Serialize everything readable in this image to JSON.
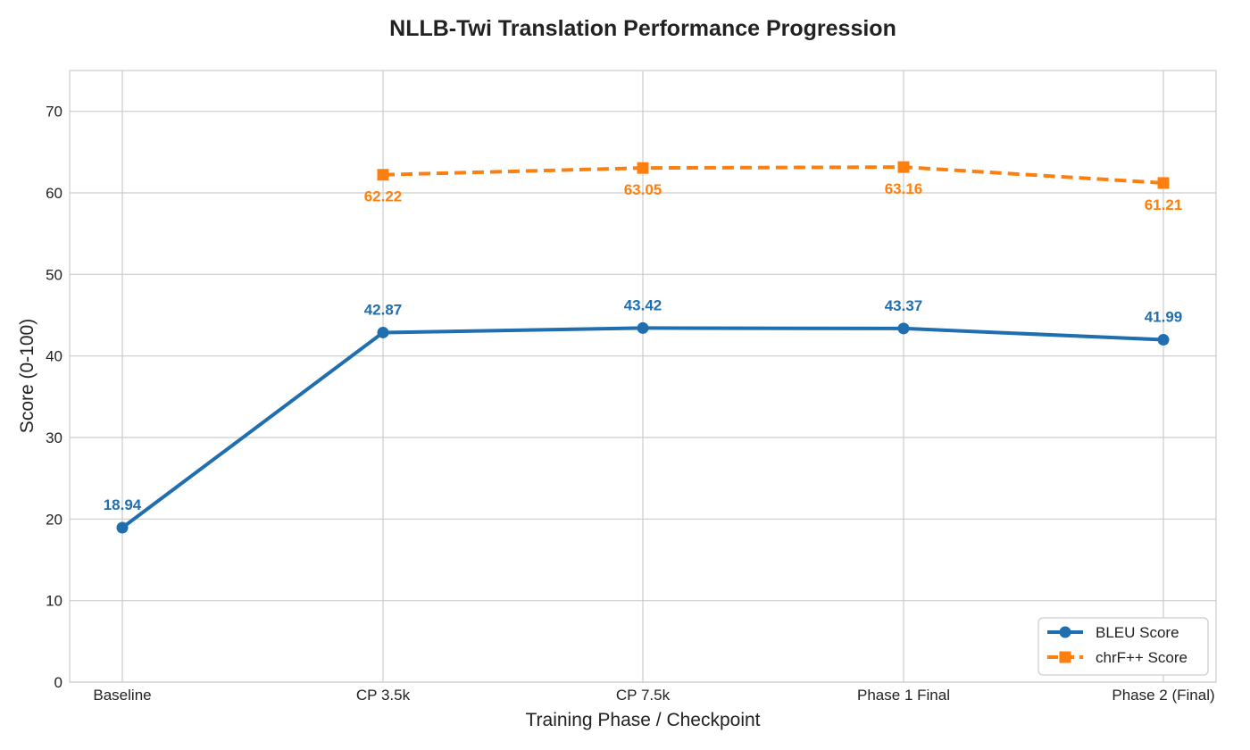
{
  "chart_data": {
    "type": "line",
    "title": "NLLB-Twi Translation Performance Progression",
    "xlabel": "Training Phase / Checkpoint",
    "ylabel": "Score (0-100)",
    "categories": [
      "Baseline",
      "CP 3.5k",
      "CP 7.5k",
      "Phase 1 Final",
      "Phase 2 (Final)"
    ],
    "ylim": [
      0,
      75
    ],
    "yticks": [
      0,
      10,
      20,
      30,
      40,
      50,
      60,
      70
    ],
    "grid": true,
    "legend_position": "bottom-right",
    "series": [
      {
        "name": "BLEU Score",
        "values": [
          18.94,
          42.87,
          43.42,
          43.37,
          41.99
        ],
        "labels": [
          "18.94",
          "42.87",
          "43.42",
          "43.37",
          "41.99"
        ],
        "color": "#1f6fb0",
        "marker": "circle",
        "line_style": "solid",
        "label_placement": "above"
      },
      {
        "name": "chrF++ Score",
        "values": [
          null,
          62.22,
          63.05,
          63.16,
          61.21
        ],
        "labels": [
          null,
          "62.22",
          "63.05",
          "63.16",
          "61.21"
        ],
        "color": "#ff7f0e",
        "marker": "square",
        "line_style": "dashed",
        "label_placement": "below"
      }
    ]
  }
}
